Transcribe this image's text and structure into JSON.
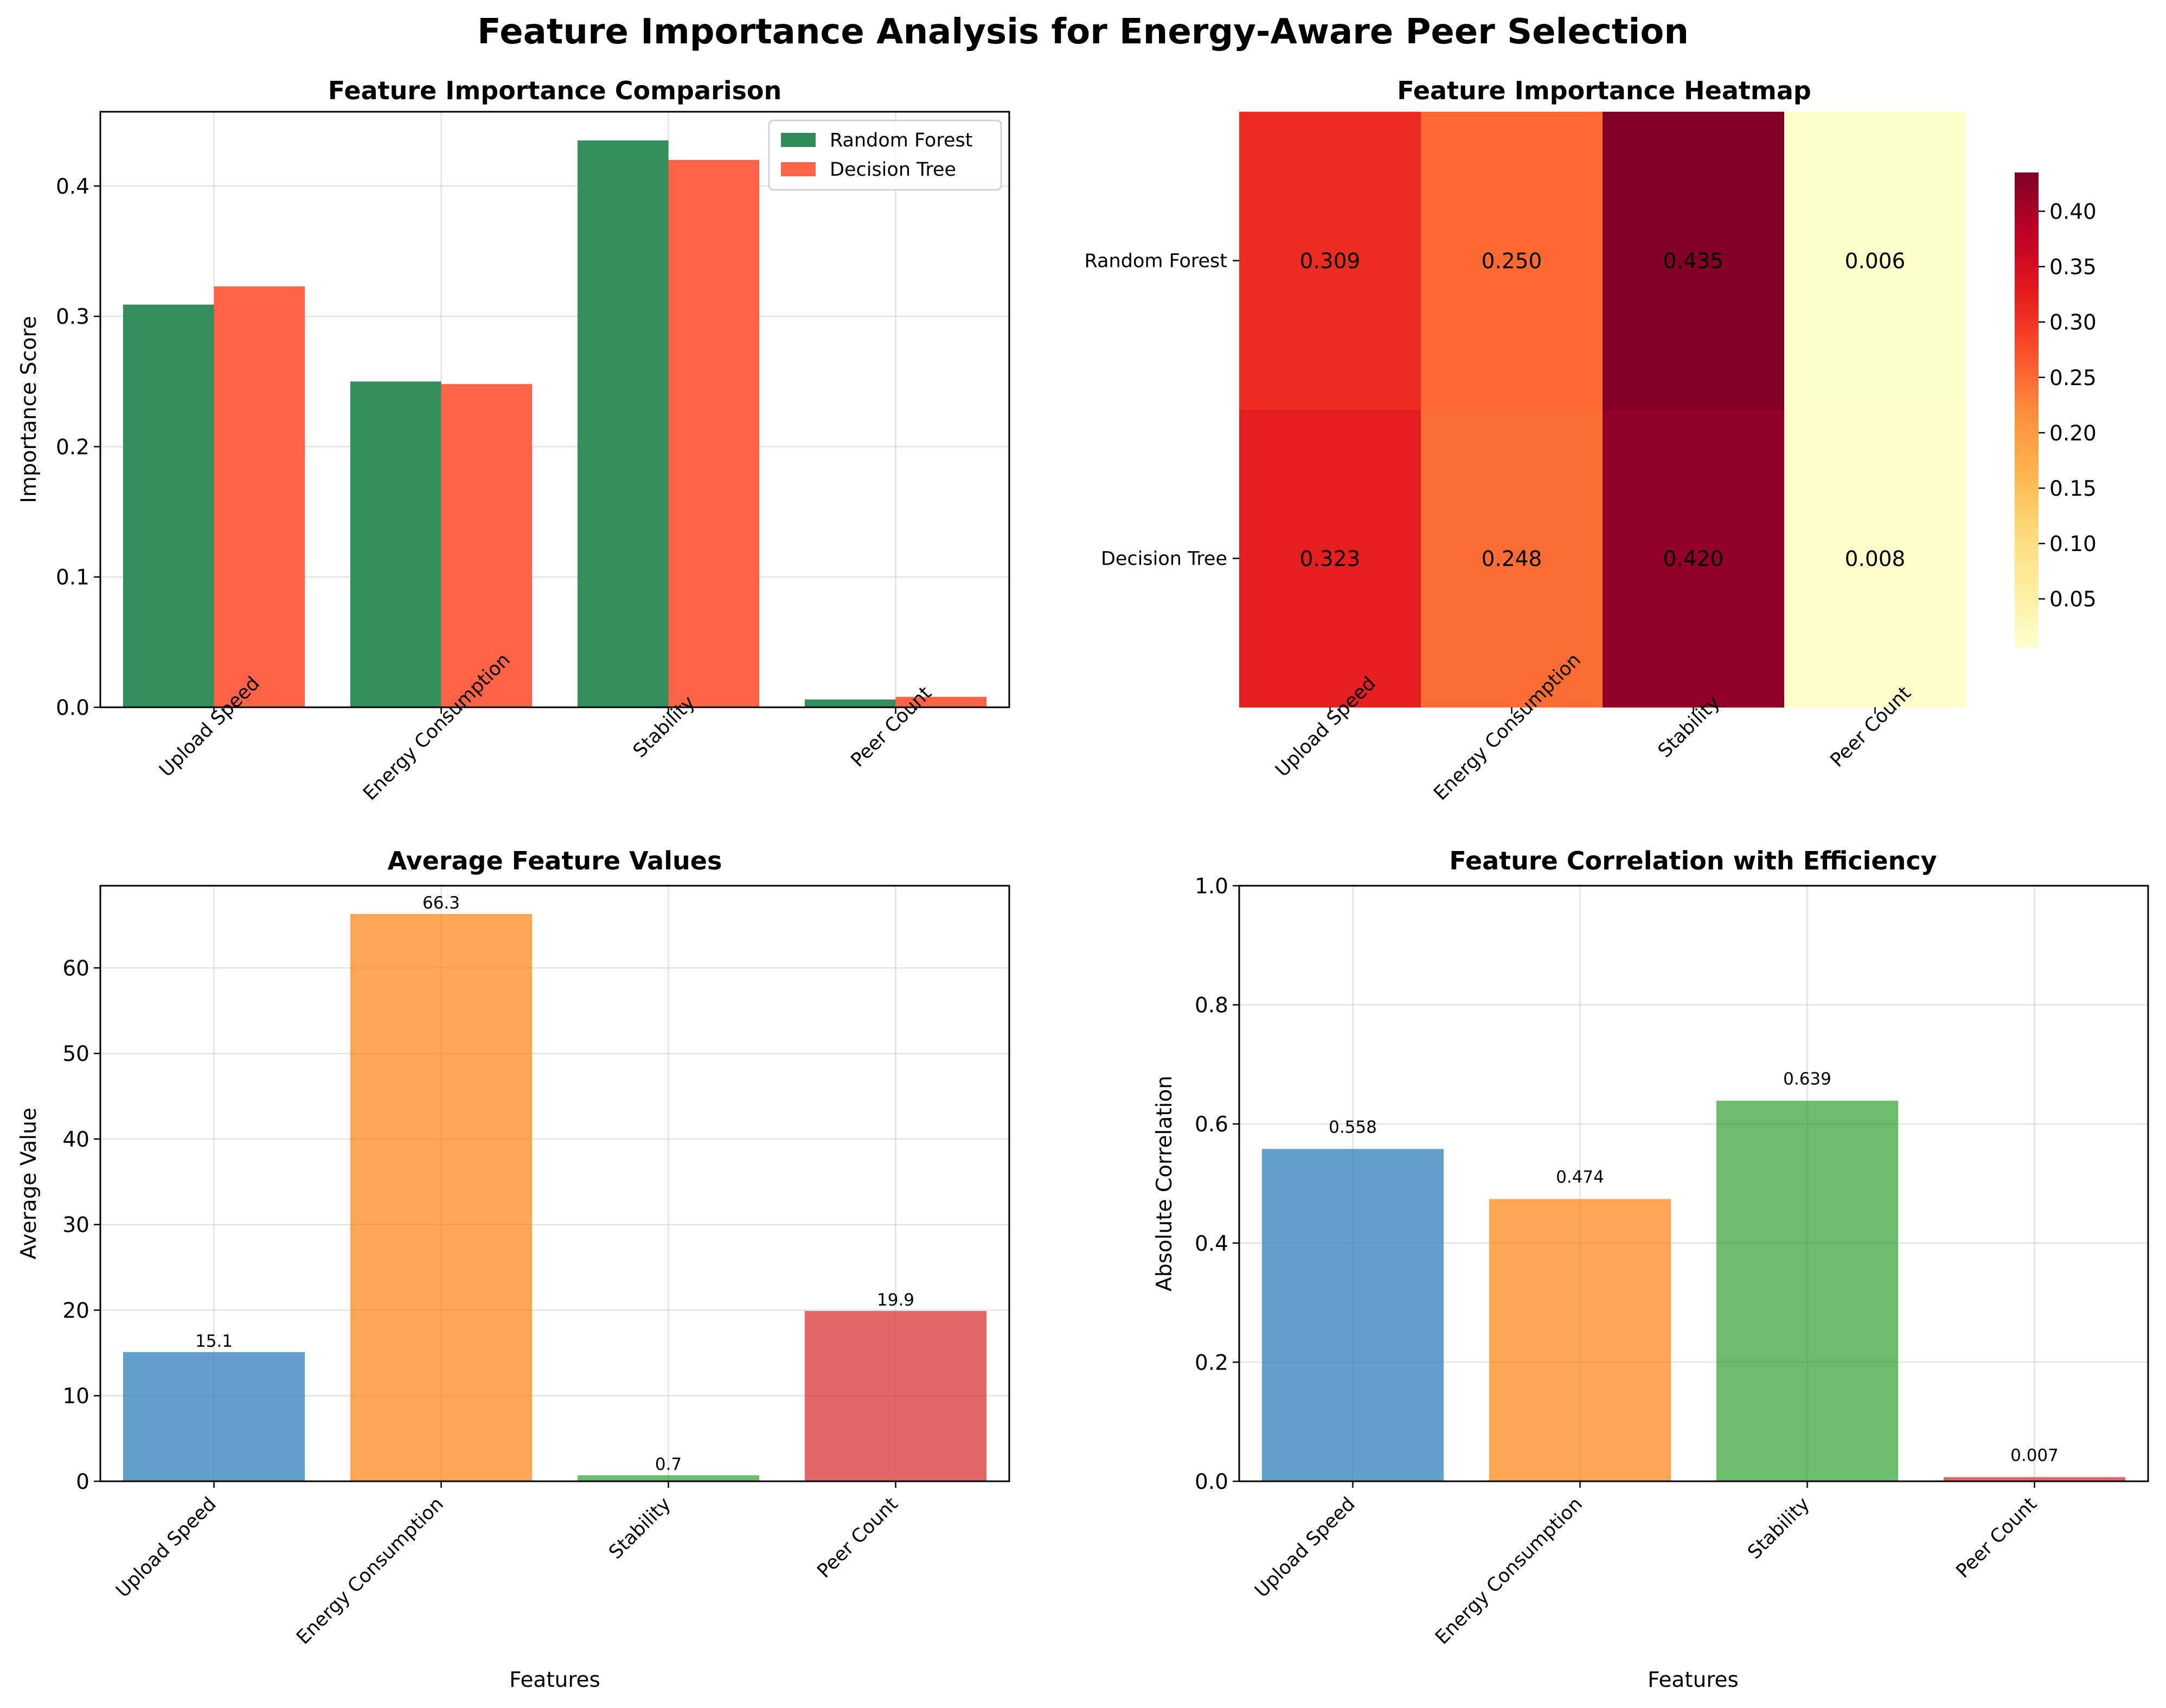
{
  "figure": {
    "title": "Feature Importance Analysis for Energy-Aware Peer Selection"
  },
  "chart_data": [
    {
      "id": "importance",
      "type": "bar",
      "title": "Feature Importance Comparison",
      "xlabel": "",
      "ylabel": "Importance Score",
      "categories": [
        "Upload Speed",
        "Energy Consumption",
        "Stability",
        "Peer Count"
      ],
      "series": [
        {
          "name": "Random Forest",
          "values": [
            0.309,
            0.25,
            0.435,
            0.006
          ],
          "color": "#2e8b57"
        },
        {
          "name": "Decision Tree",
          "values": [
            0.323,
            0.248,
            0.42,
            0.008
          ],
          "color": "#ff6347"
        }
      ],
      "ylim": [
        0,
        0.457
      ],
      "yticks": [
        0.0,
        0.1,
        0.2,
        0.3,
        0.4
      ],
      "grid": true,
      "legend": "top-right"
    },
    {
      "id": "heatmap",
      "type": "heatmap",
      "title": "Feature Importance Heatmap",
      "rows": [
        "Random Forest",
        "Decision Tree"
      ],
      "columns": [
        "Upload Speed",
        "Energy Consumption",
        "Stability",
        "Peer Count"
      ],
      "values": [
        [
          0.309,
          0.25,
          0.435,
          0.006
        ],
        [
          0.323,
          0.248,
          0.42,
          0.008
        ]
      ],
      "value_labels": [
        [
          "0.309",
          "0.250",
          "0.435",
          "0.006"
        ],
        [
          "0.323",
          "0.248",
          "0.420",
          "0.008"
        ]
      ],
      "colormap": "YlOrRd",
      "colorbar_range": [
        0.006,
        0.435
      ],
      "colorbar_ticks": [
        0.05,
        0.1,
        0.15,
        0.2,
        0.25,
        0.3,
        0.35,
        0.4
      ]
    },
    {
      "id": "averages",
      "type": "bar",
      "title": "Average Feature Values",
      "xlabel": "Features",
      "ylabel": "Average Value",
      "categories": [
        "Upload Speed",
        "Energy Consumption",
        "Stability",
        "Peer Count"
      ],
      "values": [
        15.1,
        66.3,
        0.7,
        19.9
      ],
      "value_labels": [
        "15.1",
        "66.3",
        "0.7",
        "19.9"
      ],
      "colors": [
        "#1f77b4",
        "#ff7f0e",
        "#2ca02c",
        "#d62728"
      ],
      "ylim": [
        0,
        69.6
      ],
      "yticks": [
        0,
        10,
        20,
        30,
        40,
        50,
        60
      ],
      "grid": true
    },
    {
      "id": "correlation",
      "type": "bar",
      "title": "Feature Correlation with Efficiency",
      "xlabel": "Features",
      "ylabel": "Absolute Correlation",
      "categories": [
        "Upload Speed",
        "Energy Consumption",
        "Stability",
        "Peer Count"
      ],
      "values": [
        0.558,
        0.474,
        0.639,
        0.007
      ],
      "value_labels": [
        "0.558",
        "0.474",
        "0.639",
        "0.007"
      ],
      "colors": [
        "#1f77b4",
        "#ff7f0e",
        "#2ca02c",
        "#d62728"
      ],
      "ylim": [
        0,
        1.0
      ],
      "yticks": [
        0.0,
        0.2,
        0.4,
        0.6,
        0.8,
        1.0
      ],
      "grid": true
    }
  ]
}
